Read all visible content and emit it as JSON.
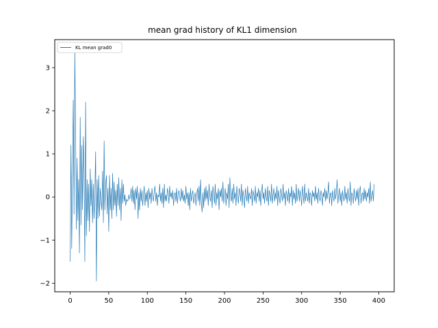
{
  "chart_data": {
    "type": "line",
    "title": "mean grad history of KL1 dimension",
    "xlabel": "",
    "ylabel": "",
    "xlim": [
      -20,
      420
    ],
    "ylim": [
      -2.2,
      3.65
    ],
    "xticks": [
      0,
      50,
      100,
      150,
      200,
      250,
      300,
      350,
      400
    ],
    "yticks": [
      -2,
      -1,
      0,
      1,
      2,
      3
    ],
    "grid": false,
    "legend_position": "top-left",
    "series": [
      {
        "name": "KL mean grad0",
        "color": "#1f77b4",
        "x_start": 0,
        "x_step": 1,
        "values": [
          -1.5,
          1.2,
          -1.2,
          0.6,
          2.25,
          -0.4,
          3.4,
          1.6,
          -0.75,
          0.9,
          -0.55,
          0.4,
          -1.3,
          1.85,
          -0.65,
          1.2,
          -0.3,
          1.4,
          0.55,
          -1.5,
          2.2,
          -0.9,
          0.4,
          -0.55,
          0.3,
          -0.8,
          0.65,
          -0.2,
          0.4,
          -0.6,
          0.3,
          -0.5,
          0.1,
          1.05,
          -1.95,
          0.4,
          -0.5,
          0.5,
          -0.45,
          0.2,
          -0.1,
          -0.3,
          0.6,
          -0.6,
          1.3,
          -0.3,
          0.3,
          0.5,
          -0.4,
          0.2,
          -0.8,
          0.5,
          -0.3,
          0.2,
          -0.5,
          0.55,
          -0.3,
          0.35,
          -0.2,
          0.15,
          -0.45,
          0.3,
          -0.2,
          0.45,
          -0.3,
          0.2,
          -0.55,
          0.4,
          -0.15,
          0.3,
          -0.1,
          0.05,
          -0.2,
          -0.05,
          -0.1,
          -0.08,
          0.05,
          -0.05,
          0.0,
          0.2,
          -0.1,
          0.25,
          -0.15,
          0.15,
          -0.3,
          0.2,
          -0.05,
          0.25,
          -0.5,
          0.1,
          -0.3,
          0.2,
          -0.1,
          0.15,
          -0.2,
          0.05,
          0.25,
          -0.2,
          0.1,
          -0.1,
          0.15,
          -0.25,
          0.2,
          -0.05,
          0.1,
          -0.15,
          0.2,
          0.0,
          -0.1,
          0.15,
          0.25,
          -0.1,
          0.1,
          -0.2,
          0.05,
          0.0,
          0.3,
          -0.1,
          0.1,
          -0.15,
          0.2,
          -0.25,
          0.3,
          -0.1,
          0.05,
          -0.1,
          0.2,
          0.1,
          -0.15,
          0.25,
          0.0,
          0.1,
          -0.05,
          0.15,
          -0.2,
          0.05,
          0.1,
          -0.1,
          0.2,
          -0.15,
          0.05,
          0.15,
          0.0,
          -0.1,
          0.2,
          -0.05,
          0.15,
          -0.1,
          0.05,
          -0.15,
          0.25,
          -0.05,
          0.1,
          -0.2,
          0.1,
          -0.3,
          0.2,
          -0.1,
          0.05,
          0.15,
          -0.15,
          0.0,
          0.1,
          -0.2,
          0.05,
          0.2,
          -0.1,
          0.25,
          -0.2,
          0.4,
          -0.15,
          -0.35,
          0.1,
          -0.25,
          0.2,
          -0.1,
          0.25,
          -0.05,
          0.15,
          -0.2,
          0.3,
          0.0,
          -0.1,
          0.15,
          -0.25,
          0.25,
          0.05,
          -0.15,
          0.3,
          -0.2,
          0.1,
          -0.05,
          0.2,
          -0.3,
          0.15,
          0.0,
          0.2,
          -0.1,
          0.35,
          -0.15,
          0.05,
          0.2,
          -0.2,
          0.1,
          -0.05,
          0.3,
          -0.25,
          0.45,
          0.0,
          -0.1,
          0.2,
          -0.15,
          0.3,
          -0.05,
          0.1,
          -0.2,
          0.25,
          0.0,
          -0.15,
          0.2,
          0.1,
          -0.1,
          0.3,
          -0.2,
          0.15,
          0.0,
          -0.25,
          0.2,
          0.05,
          -0.1,
          0.25,
          -0.15,
          0.1,
          0.0,
          -0.05,
          0.2,
          -0.2,
          0.15,
          0.05,
          -0.1,
          0.25,
          -0.15,
          0.1,
          0.0,
          0.2,
          -0.1,
          0.15,
          -0.2,
          0.1,
          0.3,
          -0.05,
          0.1,
          -0.15,
          0.2,
          0.0,
          -0.1,
          0.25,
          -0.2,
          0.15,
          0.05,
          -0.1,
          0.3,
          -0.15,
          0.05,
          0.2,
          -0.1,
          0.1,
          -0.05,
          0.25,
          -0.2,
          0.15,
          0.0,
          -0.15,
          0.2,
          0.05,
          -0.1,
          0.3,
          -0.05,
          0.1,
          -0.2,
          0.15,
          0.05,
          -0.1,
          0.2,
          -0.15,
          0.1,
          0.0,
          0.25,
          -0.2,
          0.15,
          -0.05,
          0.1,
          -0.15,
          0.3,
          -0.1,
          0.05,
          0.2,
          -0.1,
          0.15,
          0.0,
          -0.2,
          0.25,
          0.05,
          -0.15,
          0.3,
          -0.1,
          0.1,
          0.0,
          -0.1,
          0.2,
          -0.15,
          0.1,
          0.05,
          -0.2,
          0.15,
          0.0,
          0.1,
          -0.1,
          0.25,
          -0.05,
          0.1,
          -0.15,
          0.2,
          0.0,
          -0.1,
          0.15,
          0.05,
          -0.2,
          0.1,
          0.0,
          0.2,
          -0.1,
          0.15,
          -0.05,
          0.1,
          0.35,
          -0.15,
          0.05,
          0.1,
          -0.2,
          0.15,
          0.0,
          -0.1,
          0.2,
          -0.05,
          0.1,
          0.4,
          -0.15,
          0.05,
          0.2,
          -0.1,
          0.1,
          -0.2,
          0.15,
          0.0,
          -0.1,
          0.25,
          -0.05,
          0.1,
          -0.15,
          0.2,
          0.0,
          -0.1,
          0.35,
          -0.2,
          0.1,
          0.05,
          -0.15,
          0.2,
          0.0,
          -0.1,
          0.15,
          -0.05,
          0.2,
          -0.2,
          0.1,
          0.25,
          -0.15,
          0.05,
          0.1,
          -0.1,
          0.2,
          -0.05,
          0.15,
          -0.1,
          0.1,
          0.0,
          0.2,
          -0.15,
          0.35,
          -0.1,
          0.05,
          0.15,
          -0.1,
          0.3
        ]
      }
    ]
  }
}
